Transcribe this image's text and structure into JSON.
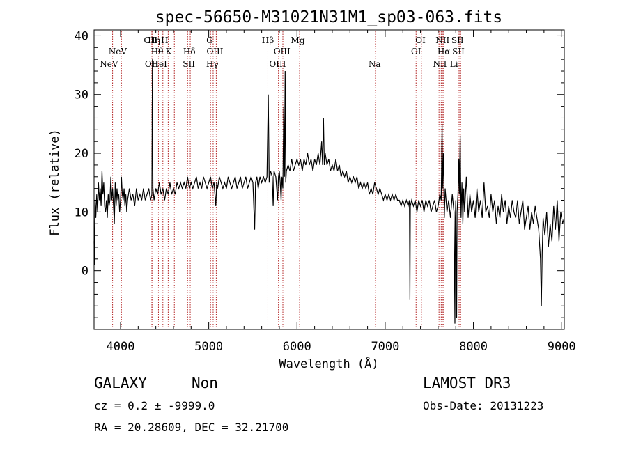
{
  "chart_data": {
    "type": "line",
    "title": "spec-56650-M31021N31M1_sp03-063.fits",
    "xlabel": "Wavelength (Å)",
    "ylabel": "Flux (relative)",
    "xlim": [
      3700,
      9030
    ],
    "ylim": [
      -10,
      41
    ],
    "x_ticks": [
      4000,
      5000,
      6000,
      7000,
      8000,
      9000
    ],
    "y_ticks": [
      0,
      10,
      20,
      30,
      40
    ],
    "grid": false,
    "spectrum_points": [
      [
        3700,
        5
      ],
      [
        3705,
        1
      ],
      [
        3712,
        12
      ],
      [
        3720,
        9
      ],
      [
        3730,
        13
      ],
      [
        3740,
        10
      ],
      [
        3750,
        15
      ],
      [
        3760,
        12
      ],
      [
        3770,
        14
      ],
      [
        3780,
        11
      ],
      [
        3790,
        17
      ],
      [
        3800,
        13
      ],
      [
        3810,
        15
      ],
      [
        3820,
        11
      ],
      [
        3830,
        10
      ],
      [
        3840,
        12
      ],
      [
        3850,
        9
      ],
      [
        3860,
        13
      ],
      [
        3870,
        11
      ],
      [
        3880,
        12
      ],
      [
        3890,
        16
      ],
      [
        3900,
        12
      ],
      [
        3910,
        14
      ],
      [
        3920,
        11
      ],
      [
        3930,
        8
      ],
      [
        3940,
        15
      ],
      [
        3950,
        11
      ],
      [
        3960,
        14
      ],
      [
        3970,
        12
      ],
      [
        3980,
        13
      ],
      [
        3990,
        10
      ],
      [
        4000,
        12
      ],
      [
        4010,
        16
      ],
      [
        4020,
        13
      ],
      [
        4030,
        12
      ],
      [
        4040,
        14
      ],
      [
        4050,
        11
      ],
      [
        4060,
        13
      ],
      [
        4070,
        10
      ],
      [
        4080,
        12
      ],
      [
        4100,
        14
      ],
      [
        4120,
        12
      ],
      [
        4140,
        13
      ],
      [
        4160,
        11
      ],
      [
        4180,
        14
      ],
      [
        4200,
        12
      ],
      [
        4220,
        13
      ],
      [
        4240,
        12
      ],
      [
        4260,
        14
      ],
      [
        4280,
        12
      ],
      [
        4300,
        13
      ],
      [
        4320,
        14
      ],
      [
        4340,
        12
      ],
      [
        4355,
        13
      ],
      [
        4362,
        36
      ],
      [
        4367,
        14
      ],
      [
        4380,
        12
      ],
      [
        4400,
        14
      ],
      [
        4420,
        13
      ],
      [
        4440,
        15
      ],
      [
        4460,
        13
      ],
      [
        4480,
        14
      ],
      [
        4500,
        12
      ],
      [
        4520,
        14
      ],
      [
        4540,
        13
      ],
      [
        4560,
        15
      ],
      [
        4580,
        13
      ],
      [
        4600,
        14
      ],
      [
        4620,
        13
      ],
      [
        4640,
        15
      ],
      [
        4660,
        14
      ],
      [
        4680,
        15
      ],
      [
        4700,
        14
      ],
      [
        4720,
        15
      ],
      [
        4740,
        14
      ],
      [
        4760,
        16
      ],
      [
        4780,
        14
      ],
      [
        4800,
        15
      ],
      [
        4820,
        14
      ],
      [
        4840,
        15
      ],
      [
        4860,
        16
      ],
      [
        4880,
        14
      ],
      [
        4900,
        15
      ],
      [
        4920,
        14
      ],
      [
        4940,
        16
      ],
      [
        4960,
        15
      ],
      [
        4980,
        14
      ],
      [
        5000,
        15
      ],
      [
        5020,
        16
      ],
      [
        5040,
        14
      ],
      [
        5060,
        15
      ],
      [
        5080,
        11
      ],
      [
        5090,
        15
      ],
      [
        5100,
        14
      ],
      [
        5120,
        16
      ],
      [
        5140,
        15
      ],
      [
        5160,
        14
      ],
      [
        5180,
        15
      ],
      [
        5200,
        14
      ],
      [
        5220,
        16
      ],
      [
        5240,
        15
      ],
      [
        5260,
        14
      ],
      [
        5280,
        15
      ],
      [
        5300,
        16
      ],
      [
        5320,
        14
      ],
      [
        5340,
        15
      ],
      [
        5360,
        16
      ],
      [
        5380,
        14
      ],
      [
        5400,
        15
      ],
      [
        5420,
        16
      ],
      [
        5440,
        14
      ],
      [
        5460,
        15
      ],
      [
        5480,
        16
      ],
      [
        5500,
        15
      ],
      [
        5520,
        7
      ],
      [
        5530,
        15
      ],
      [
        5545,
        16
      ],
      [
        5560,
        14
      ],
      [
        5580,
        16
      ],
      [
        5600,
        15
      ],
      [
        5620,
        16
      ],
      [
        5640,
        15
      ],
      [
        5660,
        16
      ],
      [
        5675,
        30
      ],
      [
        5685,
        15
      ],
      [
        5700,
        17
      ],
      [
        5720,
        16
      ],
      [
        5730,
        11
      ],
      [
        5740,
        17
      ],
      [
        5760,
        16
      ],
      [
        5780,
        12
      ],
      [
        5790,
        16
      ],
      [
        5800,
        17
      ],
      [
        5810,
        15
      ],
      [
        5820,
        12
      ],
      [
        5830,
        16
      ],
      [
        5840,
        14
      ],
      [
        5850,
        28
      ],
      [
        5858,
        16
      ],
      [
        5866,
        34
      ],
      [
        5872,
        15
      ],
      [
        5880,
        17
      ],
      [
        5900,
        18
      ],
      [
        5920,
        17
      ],
      [
        5940,
        19
      ],
      [
        5960,
        17
      ],
      [
        5980,
        18
      ],
      [
        6000,
        19
      ],
      [
        6020,
        18
      ],
      [
        6040,
        19
      ],
      [
        6060,
        17
      ],
      [
        6080,
        19
      ],
      [
        6100,
        18
      ],
      [
        6120,
        20
      ],
      [
        6140,
        18
      ],
      [
        6160,
        19
      ],
      [
        6180,
        17
      ],
      [
        6200,
        19
      ],
      [
        6220,
        18
      ],
      [
        6240,
        20
      ],
      [
        6260,
        18
      ],
      [
        6280,
        22
      ],
      [
        6290,
        18
      ],
      [
        6300,
        26
      ],
      [
        6310,
        18
      ],
      [
        6320,
        20
      ],
      [
        6340,
        18
      ],
      [
        6360,
        19
      ],
      [
        6380,
        17
      ],
      [
        6400,
        18
      ],
      [
        6420,
        17
      ],
      [
        6440,
        19
      ],
      [
        6460,
        17
      ],
      [
        6480,
        18
      ],
      [
        6500,
        16
      ],
      [
        6520,
        17
      ],
      [
        6540,
        16
      ],
      [
        6560,
        17
      ],
      [
        6580,
        15
      ],
      [
        6600,
        16
      ],
      [
        6620,
        15
      ],
      [
        6640,
        16
      ],
      [
        6660,
        15
      ],
      [
        6680,
        16
      ],
      [
        6700,
        14
      ],
      [
        6720,
        15
      ],
      [
        6740,
        14
      ],
      [
        6760,
        15
      ],
      [
        6780,
        14
      ],
      [
        6800,
        15
      ],
      [
        6820,
        13
      ],
      [
        6840,
        14
      ],
      [
        6860,
        13
      ],
      [
        6880,
        15
      ],
      [
        6900,
        14
      ],
      [
        6920,
        13
      ],
      [
        6940,
        14
      ],
      [
        6960,
        13
      ],
      [
        6980,
        12
      ],
      [
        7000,
        13
      ],
      [
        7020,
        12
      ],
      [
        7040,
        13
      ],
      [
        7060,
        12
      ],
      [
        7080,
        13
      ],
      [
        7100,
        12
      ],
      [
        7120,
        13
      ],
      [
        7140,
        12
      ],
      [
        7160,
        12
      ],
      [
        7180,
        11
      ],
      [
        7200,
        12
      ],
      [
        7220,
        11
      ],
      [
        7240,
        12
      ],
      [
        7260,
        11
      ],
      [
        7275,
        12
      ],
      [
        7280,
        -5
      ],
      [
        7285,
        11
      ],
      [
        7300,
        12
      ],
      [
        7320,
        11
      ],
      [
        7340,
        12
      ],
      [
        7360,
        10
      ],
      [
        7380,
        12
      ],
      [
        7400,
        11
      ],
      [
        7420,
        12
      ],
      [
        7440,
        10
      ],
      [
        7460,
        12
      ],
      [
        7480,
        11
      ],
      [
        7500,
        12
      ],
      [
        7520,
        10
      ],
      [
        7540,
        11
      ],
      [
        7560,
        12
      ],
      [
        7580,
        10
      ],
      [
        7600,
        11
      ],
      [
        7620,
        13
      ],
      [
        7635,
        12
      ],
      [
        7645,
        25
      ],
      [
        7650,
        14
      ],
      [
        7660,
        20
      ],
      [
        7670,
        9
      ],
      [
        7680,
        14
      ],
      [
        7700,
        10
      ],
      [
        7720,
        12
      ],
      [
        7740,
        9
      ],
      [
        7760,
        13
      ],
      [
        7780,
        10
      ],
      [
        7790,
        -9
      ],
      [
        7795,
        9
      ],
      [
        7800,
        12
      ],
      [
        7810,
        -8
      ],
      [
        7815,
        10
      ],
      [
        7825,
        13
      ],
      [
        7835,
        19
      ],
      [
        7840,
        13
      ],
      [
        7850,
        23
      ],
      [
        7860,
        9
      ],
      [
        7870,
        15
      ],
      [
        7880,
        8
      ],
      [
        7890,
        14
      ],
      [
        7900,
        10
      ],
      [
        7920,
        16
      ],
      [
        7940,
        9
      ],
      [
        7960,
        13
      ],
      [
        7980,
        10
      ],
      [
        8000,
        12
      ],
      [
        8020,
        9
      ],
      [
        8040,
        14
      ],
      [
        8060,
        10
      ],
      [
        8080,
        12
      ],
      [
        8100,
        9
      ],
      [
        8120,
        15
      ],
      [
        8140,
        10
      ],
      [
        8160,
        11
      ],
      [
        8180,
        9
      ],
      [
        8200,
        13
      ],
      [
        8220,
        10
      ],
      [
        8240,
        12
      ],
      [
        8260,
        8
      ],
      [
        8280,
        11
      ],
      [
        8300,
        9
      ],
      [
        8320,
        13
      ],
      [
        8340,
        10
      ],
      [
        8360,
        12
      ],
      [
        8380,
        8
      ],
      [
        8400,
        11
      ],
      [
        8420,
        9
      ],
      [
        8440,
        12
      ],
      [
        8460,
        10
      ],
      [
        8480,
        9
      ],
      [
        8500,
        12
      ],
      [
        8520,
        8
      ],
      [
        8540,
        10
      ],
      [
        8560,
        12
      ],
      [
        8580,
        7
      ],
      [
        8600,
        9
      ],
      [
        8620,
        11
      ],
      [
        8640,
        7
      ],
      [
        8660,
        10
      ],
      [
        8680,
        8
      ],
      [
        8700,
        11
      ],
      [
        8720,
        9
      ],
      [
        8740,
        7
      ],
      [
        8760,
        2
      ],
      [
        8770,
        -6
      ],
      [
        8780,
        3
      ],
      [
        8790,
        9
      ],
      [
        8810,
        6
      ],
      [
        8830,
        10
      ],
      [
        8850,
        4
      ],
      [
        8870,
        8
      ],
      [
        8890,
        5
      ],
      [
        8910,
        11
      ],
      [
        8930,
        7
      ],
      [
        8950,
        12
      ],
      [
        8970,
        5
      ],
      [
        8990,
        10
      ],
      [
        9010,
        8
      ],
      [
        9030,
        9
      ]
    ],
    "emission_lines": [
      {
        "x": 3869,
        "label": "NeV",
        "row": 3
      },
      {
        "x": 3968,
        "label": "NeV",
        "row": 2
      },
      {
        "x": 4340,
        "label": "OII",
        "row": 1
      },
      {
        "x": 4352,
        "label": "OII",
        "row": 3
      },
      {
        "x": 4380,
        "label": "Hη",
        "row": 1
      },
      {
        "x": 4415,
        "label": "Hθ",
        "row": 2
      },
      {
        "x": 4440,
        "label": "HeI",
        "row": 3
      },
      {
        "x": 4500,
        "label": "H",
        "row": 1
      },
      {
        "x": 4545,
        "label": "K",
        "row": 2
      },
      {
        "x": 4780,
        "label": "Hδ",
        "row": 2
      },
      {
        "x": 4775,
        "label": "SII",
        "row": 3
      },
      {
        "x": 5010,
        "label": "G",
        "row": 1
      },
      {
        "x": 5070,
        "label": "OIII",
        "row": 2
      },
      {
        "x": 5040,
        "label": "Hγ",
        "row": 3
      },
      {
        "x": 5670,
        "label": "Hβ",
        "row": 1
      },
      {
        "x": 5830,
        "label": "OIII",
        "row": 2
      },
      {
        "x": 5780,
        "label": "OIII",
        "row": 3
      },
      {
        "x": 6010,
        "label": "Mg",
        "row": 1
      },
      {
        "x": 6880,
        "label": "Na",
        "row": 3
      },
      {
        "x": 7400,
        "label": "OI",
        "row": 1
      },
      {
        "x": 7350,
        "label": "OI",
        "row": 2
      },
      {
        "x": 7650,
        "label": "NII",
        "row": 1
      },
      {
        "x": 7665,
        "label": "Hα",
        "row": 2
      },
      {
        "x": 7620,
        "label": "NII",
        "row": 3
      },
      {
        "x": 7820,
        "label": "SII",
        "row": 1
      },
      {
        "x": 7830,
        "label": "SII",
        "row": 2
      },
      {
        "x": 7780,
        "label": "Li",
        "row": 3
      }
    ],
    "line_markers": [
      3910,
      4010,
      4355,
      4365,
      4430,
      4480,
      4540,
      4610,
      4760,
      4790,
      5020,
      5050,
      5085,
      5670,
      5790,
      5840,
      6030,
      6890,
      7350,
      7410,
      7610,
      7635,
      7655,
      7665,
      7830,
      7845,
      7855
    ]
  },
  "footer": {
    "left_class": "GALAXY",
    "left_subclass": "Non",
    "cz": "cz = 0.2 ± -9999.0",
    "coords": "RA =  20.28609, DEC =  32.21700",
    "survey": "LAMOST DR3",
    "obs_date": "Obs-Date: 20131223"
  },
  "colors": {
    "spectrum": "#000000",
    "markers": "#b22222",
    "axes": "#000000"
  }
}
